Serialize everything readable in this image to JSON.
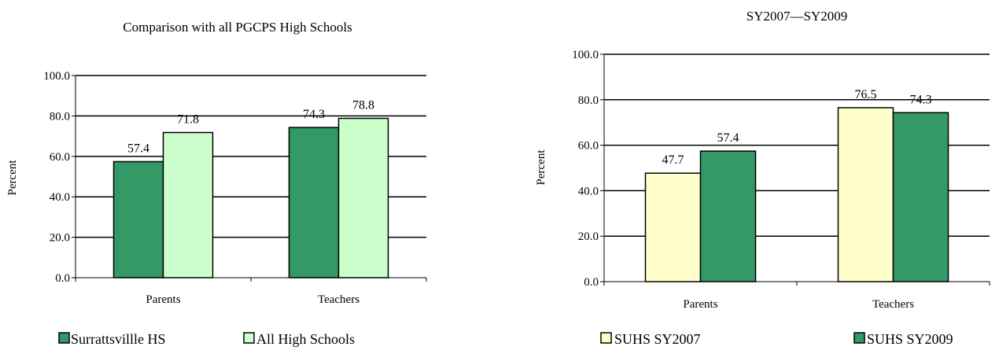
{
  "chart_data": [
    {
      "type": "bar",
      "title": "Comparison with all PGCPS High Schools",
      "ylabel": "Percent",
      "xlabel": "",
      "categories": [
        "Parents",
        "Teachers"
      ],
      "ylim": [
        0,
        100
      ],
      "yticks": [
        "0.0",
        "20.0",
        "40.0",
        "60.0",
        "80.0",
        "100.0"
      ],
      "grid": true,
      "legend_position": "bottom",
      "series": [
        {
          "name": "Surrattsvillle HS",
          "values": [
            57.4,
            74.3
          ],
          "labels": [
            "57.4",
            "74.3"
          ],
          "color": "#339966"
        },
        {
          "name": "All High Schools",
          "values": [
            71.8,
            78.8
          ],
          "labels": [
            "71.8",
            "78.8"
          ],
          "color": "#CCFFCC"
        }
      ]
    },
    {
      "type": "bar",
      "title": "SY2007—SY2009",
      "ylabel": "Percent",
      "xlabel": "",
      "categories": [
        "Parents",
        "Teachers"
      ],
      "ylim": [
        0,
        100
      ],
      "yticks": [
        "0.0",
        "20.0",
        "40.0",
        "60.0",
        "80.0",
        "100.0"
      ],
      "grid": true,
      "legend_position": "bottom",
      "series": [
        {
          "name": "SUHS SY2007",
          "values": [
            47.7,
            76.5
          ],
          "labels": [
            "47.7",
            "76.5"
          ],
          "color": "#FFFFCC"
        },
        {
          "name": "SUHS SY2009",
          "values": [
            57.4,
            74.3
          ],
          "labels": [
            "57.4",
            "74.3"
          ],
          "color": "#339966"
        }
      ]
    }
  ]
}
